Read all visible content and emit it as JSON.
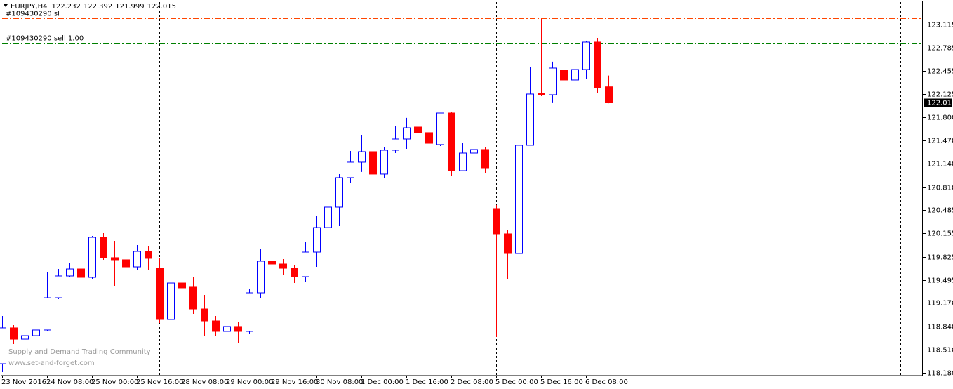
{
  "chart_data": {
    "type": "candlestick",
    "symbol": "EURJPY,H4",
    "categories": [
      "23 Nov 2016",
      null,
      null,
      null,
      "24 Nov 08:00",
      null,
      null,
      null,
      "25 Nov 00:00",
      null,
      null,
      null,
      "25 Nov 16:00",
      null,
      null,
      null,
      "28 Nov 08:00",
      null,
      null,
      null,
      "29 Nov 00:00",
      null,
      null,
      null,
      "29 Nov 16:00",
      null,
      null,
      null,
      "30 Nov 08:00",
      null,
      null,
      null,
      "1 Dec 00:00",
      null,
      null,
      null,
      "1 Dec 16:00",
      null,
      null,
      null,
      "2 Dec 08:00",
      null,
      null,
      null,
      "5 Dec 00:00",
      null,
      null,
      null,
      "5 Dec 16:00",
      null,
      null,
      null,
      "6 Dec 08:00",
      null,
      null
    ],
    "open": [
      118.309,
      118.817,
      118.657,
      118.707,
      118.787,
      119.244,
      119.553,
      119.652,
      119.533,
      120.1,
      119.812,
      119.782,
      119.682,
      119.901,
      119.662,
      118.936,
      119.453,
      119.394,
      119.085,
      118.916,
      118.767,
      118.837,
      118.767,
      119.314,
      119.762,
      119.722,
      119.662,
      119.543,
      119.891,
      120.239,
      120.528,
      120.946,
      121.165,
      121.314,
      120.996,
      121.334,
      121.493,
      121.662,
      121.583,
      121.414,
      121.861,
      121.045,
      121.294,
      121.344,
      120.508,
      120.15,
      119.871,
      121.404,
      122.14,
      122.12,
      122.468,
      122.329,
      122.478,
      122.866,
      122.232
    ],
    "high": [
      118.986,
      118.856,
      118.827,
      118.856,
      119.603,
      119.652,
      119.732,
      119.702,
      120.12,
      120.16,
      120.05,
      119.851,
      119.991,
      119.981,
      119.812,
      119.503,
      119.533,
      119.533,
      119.284,
      118.986,
      118.906,
      118.906,
      119.374,
      119.941,
      119.971,
      119.792,
      119.712,
      120.031,
      120.399,
      120.707,
      120.996,
      121.324,
      121.553,
      121.374,
      121.374,
      121.672,
      121.792,
      121.692,
      121.712,
      121.861,
      121.881,
      121.433,
      121.593,
      121.374,
      120.558,
      120.21,
      121.623,
      122.518,
      123.195,
      122.588,
      122.578,
      122.488,
      122.886,
      122.926,
      122.392
    ],
    "low": [
      118.19,
      118.588,
      118.488,
      118.618,
      118.767,
      119.225,
      119.533,
      119.513,
      119.513,
      119.782,
      119.404,
      119.304,
      119.633,
      119.633,
      118.886,
      118.817,
      119.105,
      119.016,
      118.707,
      118.707,
      118.548,
      118.608,
      118.737,
      119.244,
      119.513,
      119.563,
      119.453,
      119.463,
      119.682,
      120.239,
      120.259,
      120.876,
      121.026,
      120.836,
      120.946,
      121.294,
      121.354,
      121.374,
      121.215,
      121.394,
      120.976,
      121.045,
      120.876,
      121.006,
      118.687,
      119.503,
      119.782,
      121.404,
      122.1,
      122.011,
      122.12,
      122.17,
      122.339,
      122.15,
      121.999
    ],
    "close": [
      118.817,
      118.657,
      118.707,
      118.787,
      119.244,
      119.553,
      119.652,
      119.533,
      120.1,
      119.812,
      119.782,
      119.682,
      119.901,
      119.802,
      118.936,
      119.453,
      119.384,
      119.085,
      118.916,
      118.767,
      118.837,
      118.767,
      119.314,
      119.762,
      119.722,
      119.662,
      119.543,
      119.891,
      120.239,
      120.528,
      120.946,
      121.165,
      121.314,
      120.996,
      121.334,
      121.493,
      121.652,
      121.583,
      121.433,
      121.861,
      121.045,
      121.294,
      121.344,
      121.085,
      120.15,
      119.871,
      121.404,
      122.13,
      122.12,
      122.498,
      122.329,
      122.478,
      122.866,
      122.219,
      122.015
    ],
    "up_color": "#0000ff",
    "down_color": "#ff0000",
    "ylim": [
      118.14,
      123.433
    ],
    "yticks": [
      123.115,
      122.785,
      122.455,
      122.125,
      {
        "value": 121.8,
        "label": "121.800"
      },
      {
        "value": 121.47,
        "label": "121.470"
      },
      {
        "value": 121.14,
        "label": "121.140"
      },
      {
        "value": 120.81,
        "label": "120.810"
      },
      120.485,
      120.155,
      119.825,
      119.495,
      {
        "value": 119.17,
        "label": "119.170"
      },
      {
        "value": 118.84,
        "label": "118.840"
      },
      {
        "value": 118.51,
        "label": "118.510"
      },
      {
        "value": 118.18,
        "label": "118.180"
      }
    ],
    "levels": [
      {
        "label": "#109430290 sl",
        "value": 123.205,
        "color": "#ff4500"
      },
      {
        "label": "#109430290 sell 1.00",
        "value": 122.856,
        "color": "#008000"
      }
    ],
    "watermark": [
      "Supply and Demand Trading Community",
      "www.set-and-forget.com"
    ],
    "grid": false
  }
}
